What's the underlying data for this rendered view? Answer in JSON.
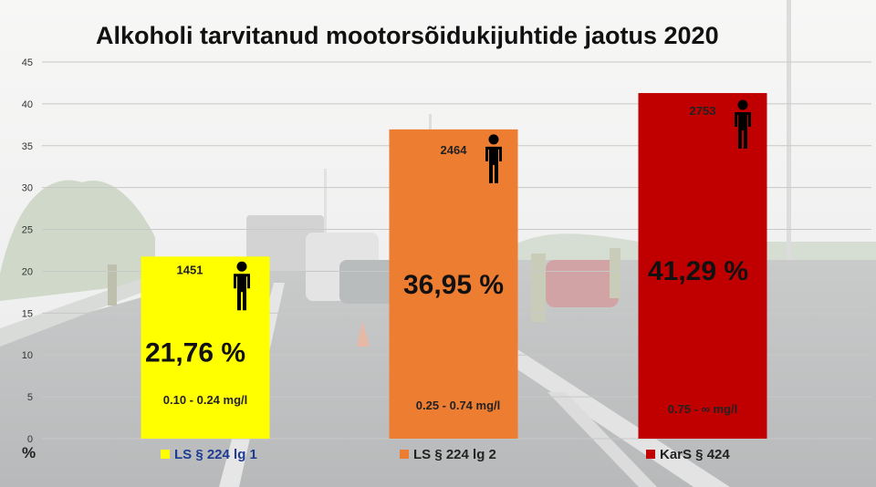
{
  "title": "Alkoholi tarvitanud mootorsõidukijuhtide jaotus 2020",
  "y_unit": "%",
  "colors": {
    "yellow": "#FFFF00",
    "orange": "#ED7D31",
    "red": "#C00000",
    "legend_text_blue": "#1F3A93"
  },
  "chart_data": {
    "type": "bar",
    "categories": [
      "LS § 224 lg 1",
      "LS § 224 lg 2",
      "KarS § 424"
    ],
    "values": [
      21.76,
      36.95,
      41.29
    ],
    "value_labels": [
      "21,76 %",
      "36,95 %",
      "41,29 %"
    ],
    "counts": [
      "1451",
      "2464",
      "2753"
    ],
    "ranges": [
      "0.10 - 0.24 mg/l",
      "0.25 - 0.74 mg/l",
      "0.75 - ∞ mg/l"
    ],
    "bar_colors": [
      "#FFFF00",
      "#ED7D31",
      "#C00000"
    ],
    "legend_text_colors": [
      "#1F3A93",
      "#222222",
      "#222222"
    ],
    "count_icon": "person-icon",
    "yticks": [
      "0",
      "5",
      "10",
      "15",
      "20",
      "25",
      "30",
      "35",
      "40",
      "45"
    ],
    "ylim": [
      0,
      45
    ],
    "ylabel": "%",
    "grid": true,
    "legend_position": "bottom"
  }
}
